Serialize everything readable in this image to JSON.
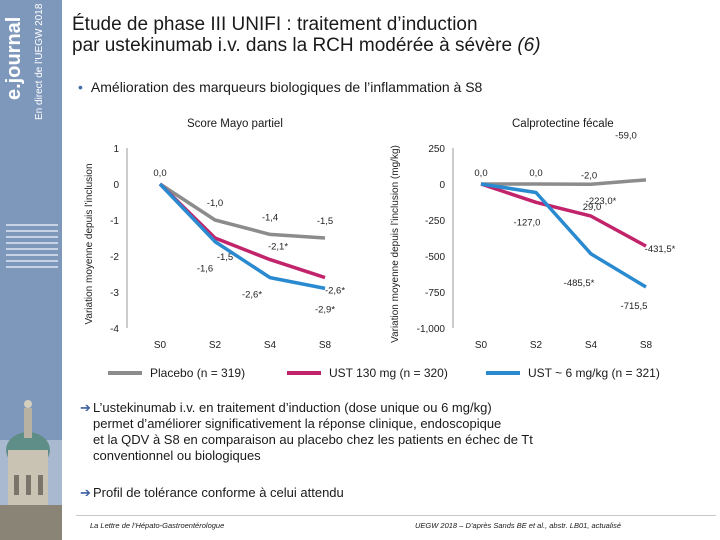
{
  "sidebar": {
    "logo": "e.journal",
    "subtitle": "En direct de l'UEGW 2018"
  },
  "header": {
    "title_line1": "Étude de phase III UNIFI : traitement d’induction",
    "title_line2": "par ustekinumab i.v. dans la RCH modérée à sévère",
    "title_ref": "(6)",
    "bullet": "Amélioration des marqueurs biologiques de l’inflammation à S8"
  },
  "colors": {
    "placebo": "#8c8c8c",
    "ust130": "#c2246c",
    "ust6": "#2a8ad0",
    "accent_blue": "#3b5fa0"
  },
  "chart_data": [
    {
      "type": "line",
      "title": "Score Mayo partiel",
      "ylabel": "Variation moyenne depuis l’inclusion",
      "ylim": [
        -4,
        1
      ],
      "yticks": [
        "1",
        "0",
        "-1",
        "-2",
        "-3",
        "-4"
      ],
      "x": [
        "S0",
        "S2",
        "S4",
        "S8"
      ],
      "series": [
        {
          "name": "Placebo (n = 319)",
          "values": [
            0.0,
            -1.0,
            -1.4,
            -1.5
          ],
          "labels": [
            "0,0",
            "-1,0",
            "-1,4",
            "-1,5"
          ]
        },
        {
          "name": "UST 130 mg (n = 320)",
          "values": [
            0.0,
            -1.5,
            -2.1,
            -2.6
          ],
          "labels": [
            "",
            "-1,5",
            "-2,1*",
            "-2,6*"
          ]
        },
        {
          "name": "UST ~ 6 mg/kg (n = 321)",
          "values": [
            0.0,
            -1.6,
            -2.6,
            -2.9
          ],
          "labels": [
            "",
            "-1,6",
            "-2,6*",
            "-2,9*"
          ]
        }
      ]
    },
    {
      "type": "line",
      "title": "Calprotectine fécale",
      "ylabel": "Variation moyenne depuis l’inclusion (mg/kg)",
      "ylim": [
        -1000,
        250
      ],
      "yticks": [
        "250",
        "0",
        "-250",
        "-500",
        "-750",
        "-1,000"
      ],
      "x": [
        "S0",
        "S2",
        "S4",
        "S8"
      ],
      "series": [
        {
          "name": "Placebo (n = 319)",
          "values": [
            0.0,
            0.0,
            -2.0,
            29.0
          ],
          "labels": [
            "0,0",
            "0,0",
            "-2,0",
            "29,0"
          ]
        },
        {
          "name": "UST 130 mg (n = 320)",
          "values": [
            0.0,
            -127.0,
            -223.0,
            -431.5
          ],
          "labels": [
            "",
            "-127,0",
            "-223,0*",
            "-431,5*"
          ]
        },
        {
          "name": "UST ~ 6 mg/kg (n = 321)",
          "values": [
            0.0,
            -59.0,
            -485.5,
            -715.5
          ],
          "labels": [
            "",
            "-59,0",
            "-485,5*",
            "-715,5"
          ]
        }
      ]
    }
  ],
  "legend": [
    {
      "label": "Placebo (n = 319)",
      "color": "#8c8c8c"
    },
    {
      "label": "UST 130 mg (n = 320)",
      "color": "#c2246c"
    },
    {
      "label": "UST ~ 6 mg/kg (n = 321)",
      "color": "#2a8ad0"
    }
  ],
  "takeaways": [
    {
      "lines": [
        "L’ustekinumab i.v. en traitement d’induction (dose unique ou 6 mg/kg)",
        "permet d’améliorer significativement la réponse clinique, endoscopique",
        "et la QDV à S8 en comparaison au placebo chez les patients en échec de Tt",
        "conventionnel ou biologiques"
      ]
    },
    {
      "lines": [
        "Profil de tolérance conforme à celui attendu"
      ]
    }
  ],
  "footer": {
    "left": "La Lettre de l’Hépato-Gastroentérologue",
    "right": "UEGW 2018 – D’après Sands BE et al., abstr. LB01, actualisé"
  }
}
